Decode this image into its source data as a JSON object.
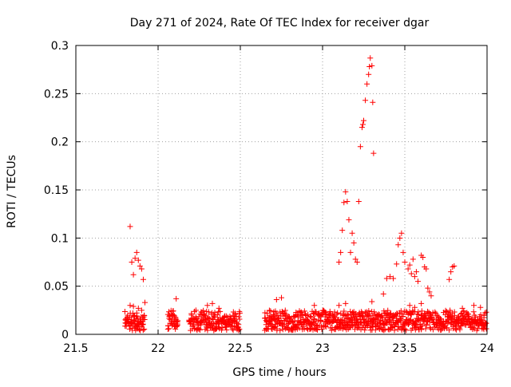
{
  "chart_data": {
    "type": "scatter",
    "title": "Day 271 of 2024, Rate Of TEC Index for receiver dgar",
    "xlabel": "GPS time / hours",
    "ylabel": "ROTI / TECUs",
    "xlim": [
      21.5,
      24
    ],
    "ylim": [
      0,
      0.3
    ],
    "grid": true,
    "marker": "+",
    "x_ticks": [
      21.5,
      22,
      22.5,
      23,
      23.5,
      24
    ],
    "x_tick_labels": [
      "21.5",
      "22",
      "22.5",
      "23",
      "23.5",
      "24"
    ],
    "y_ticks": [
      0,
      0.05,
      0.1,
      0.15,
      0.2,
      0.25,
      0.3
    ],
    "y_tick_labels": [
      "0",
      "0.05",
      "0.1",
      "0.15",
      "0.2",
      "0.25",
      "0.3"
    ],
    "series": [
      {
        "name": "ROTI",
        "color": "#ff0000",
        "segments": [
          [
            21.8,
            21.92
          ],
          [
            22.06,
            22.12
          ],
          [
            22.19,
            22.5
          ],
          [
            22.65,
            24.0
          ]
        ],
        "points": [
          [
            21.83,
            0.112
          ],
          [
            21.84,
            0.075
          ],
          [
            21.85,
            0.062
          ],
          [
            21.86,
            0.079
          ],
          [
            21.87,
            0.085
          ],
          [
            21.88,
            0.077
          ],
          [
            21.89,
            0.071
          ],
          [
            21.9,
            0.068
          ],
          [
            21.91,
            0.057
          ],
          [
            21.92,
            0.033
          ],
          [
            21.83,
            0.03
          ],
          [
            21.85,
            0.029
          ],
          [
            21.88,
            0.027
          ],
          [
            21.9,
            0.025
          ],
          [
            22.09,
            0.024
          ],
          [
            22.11,
            0.037
          ],
          [
            22.1,
            0.016
          ],
          [
            22.3,
            0.03
          ],
          [
            22.33,
            0.032
          ],
          [
            22.37,
            0.027
          ],
          [
            22.72,
            0.036
          ],
          [
            22.75,
            0.038
          ],
          [
            22.95,
            0.03
          ],
          [
            23.1,
            0.03
          ],
          [
            23.14,
            0.032
          ],
          [
            23.3,
            0.034
          ],
          [
            23.12,
            0.108
          ],
          [
            23.13,
            0.137
          ],
          [
            23.14,
            0.148
          ],
          [
            23.15,
            0.138
          ],
          [
            23.16,
            0.119
          ],
          [
            23.18,
            0.105
          ],
          [
            23.17,
            0.085
          ],
          [
            23.19,
            0.095
          ],
          [
            23.2,
            0.078
          ],
          [
            23.21,
            0.075
          ],
          [
            23.22,
            0.138
          ],
          [
            23.23,
            0.195
          ],
          [
            23.24,
            0.215
          ],
          [
            23.245,
            0.218
          ],
          [
            23.25,
            0.222
          ],
          [
            23.26,
            0.243
          ],
          [
            23.27,
            0.26
          ],
          [
            23.28,
            0.27
          ],
          [
            23.285,
            0.278
          ],
          [
            23.29,
            0.287
          ],
          [
            23.3,
            0.279
          ],
          [
            23.305,
            0.241
          ],
          [
            23.31,
            0.188
          ],
          [
            23.11,
            0.085
          ],
          [
            23.1,
            0.075
          ],
          [
            23.37,
            0.042
          ],
          [
            23.39,
            0.058
          ],
          [
            23.41,
            0.06
          ],
          [
            23.43,
            0.058
          ],
          [
            23.45,
            0.073
          ],
          [
            23.46,
            0.093
          ],
          [
            23.47,
            0.1
          ],
          [
            23.48,
            0.105
          ],
          [
            23.49,
            0.085
          ],
          [
            23.5,
            0.075
          ],
          [
            23.52,
            0.068
          ],
          [
            23.53,
            0.072
          ],
          [
            23.54,
            0.063
          ],
          [
            23.55,
            0.078
          ],
          [
            23.56,
            0.06
          ],
          [
            23.57,
            0.065
          ],
          [
            23.58,
            0.055
          ],
          [
            23.6,
            0.082
          ],
          [
            23.61,
            0.08
          ],
          [
            23.62,
            0.07
          ],
          [
            23.63,
            0.068
          ],
          [
            23.64,
            0.048
          ],
          [
            23.65,
            0.044
          ],
          [
            23.66,
            0.04
          ],
          [
            23.53,
            0.03
          ],
          [
            23.56,
            0.028
          ],
          [
            23.6,
            0.032
          ],
          [
            23.77,
            0.057
          ],
          [
            23.78,
            0.065
          ],
          [
            23.79,
            0.07
          ],
          [
            23.8,
            0.071
          ],
          [
            23.85,
            0.027
          ],
          [
            23.92,
            0.03
          ],
          [
            23.96,
            0.028
          ]
        ]
      }
    ]
  }
}
